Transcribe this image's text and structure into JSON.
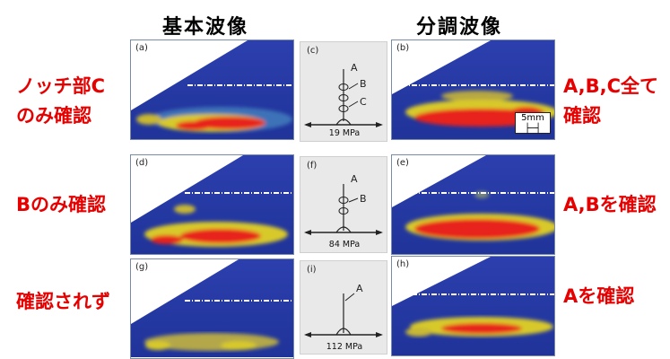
{
  "headers": {
    "left": "基本波像",
    "right": "分調波像"
  },
  "rows": [
    {
      "left_panel": "(a)",
      "center_panel": "(c)",
      "right_panel": "(b)",
      "pressure": "19 MPa",
      "crack_labels": [
        "A",
        "B",
        "C"
      ],
      "left_note": [
        "ノッチ部C",
        "のみ確認"
      ],
      "right_note": [
        "A,B,C全て",
        "確認"
      ]
    },
    {
      "left_panel": "(d)",
      "center_panel": "(f)",
      "right_panel": "(e)",
      "pressure": "84 MPa",
      "crack_labels": [
        "A",
        "B"
      ],
      "left_note": [
        "Bのみ確認"
      ],
      "right_note": [
        "A,Bを確認"
      ]
    },
    {
      "left_panel": "(g)",
      "center_panel": "(i)",
      "right_panel": "(h)",
      "pressure": "112 MPa",
      "crack_labels": [
        "A"
      ],
      "left_note": [
        "確認されず"
      ],
      "right_note": [
        "Aを確認"
      ]
    }
  ],
  "scale_bar": "5mm",
  "colors": {
    "annotation": "#e60000",
    "image_bg": "#2a3fa8",
    "hot": "#e8231b",
    "warm": "#e8d21a"
  }
}
